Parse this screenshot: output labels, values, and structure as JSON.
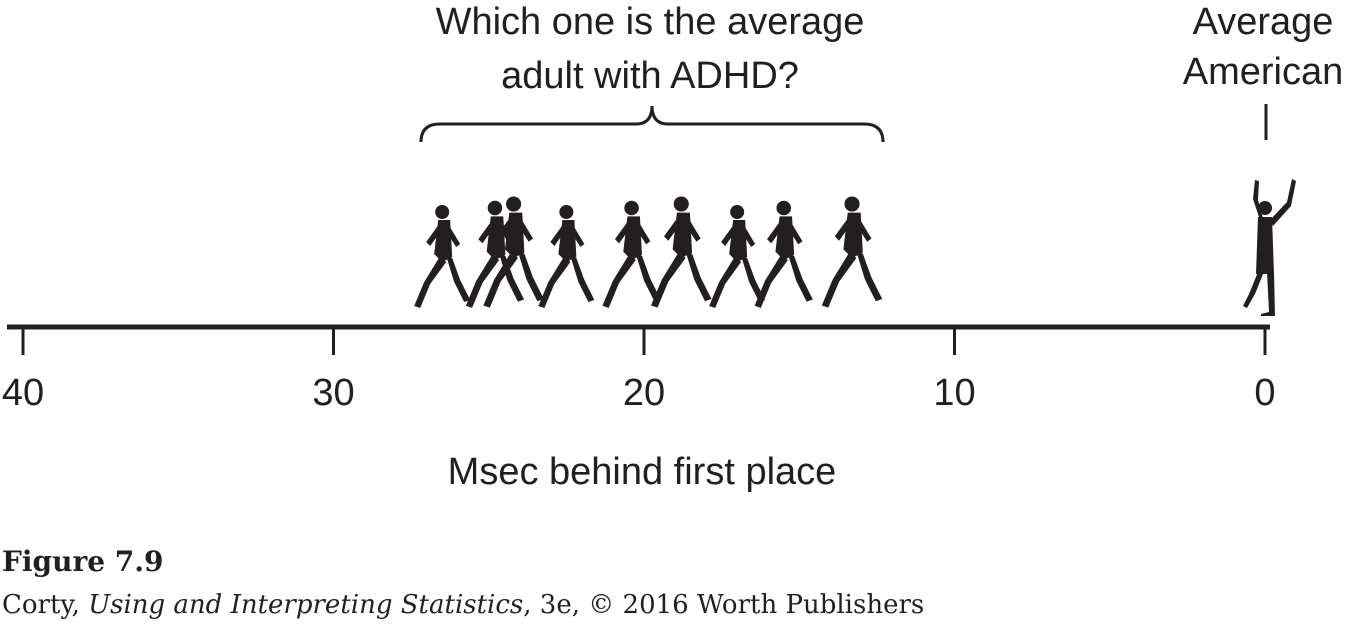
{
  "question": {
    "line1": "Which one is the average",
    "line2": "adult with ADHD?"
  },
  "reference_label": {
    "line1": "Average",
    "line2": "American"
  },
  "axis": {
    "title": "Msec behind first place",
    "min": 0,
    "max": 40,
    "direction": "reversed",
    "ticks": [
      "40",
      "30",
      "20",
      "10",
      "0"
    ],
    "tick_values": [
      40,
      30,
      20,
      10,
      0
    ]
  },
  "markers": {
    "adhd_range": [
      27,
      12.5
    ],
    "runner_icon": "running-person-silhouette-icon",
    "winner_icon": "cheering-person-silhouette-icon",
    "runner_positions": [
      26.5,
      24.8,
      24.2,
      22.5,
      20.4,
      18.8,
      17.0,
      15.5,
      13.3
    ],
    "winner_position": 0,
    "color": "#231f20"
  },
  "caption": {
    "figure": "Figure 7.9",
    "author": "Corty, ",
    "book": "Using and Interpreting Statistics",
    "rest": ", 3e, © 2016 Worth Publishers"
  }
}
